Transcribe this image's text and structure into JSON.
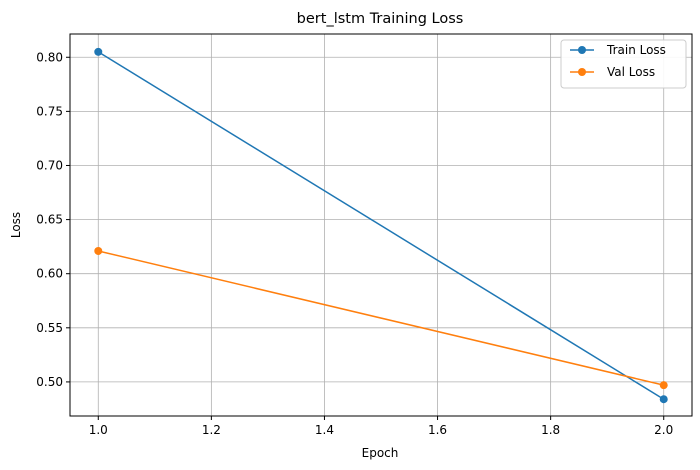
{
  "chart_data": {
    "type": "line",
    "title": "bert_lstm Training Loss",
    "xlabel": "Epoch",
    "ylabel": "Loss",
    "x": [
      1.0,
      2.0
    ],
    "xlim": [
      0.95,
      2.05
    ],
    "ylim": [
      0.4685,
      0.8215
    ],
    "xticks": [
      1.0,
      1.2,
      1.4,
      1.6,
      1.8,
      2.0
    ],
    "xtick_labels": [
      "1.0",
      "1.2",
      "1.4",
      "1.6",
      "1.8",
      "2.0"
    ],
    "yticks": [
      0.5,
      0.55,
      0.6,
      0.65,
      0.7,
      0.75,
      0.8
    ],
    "ytick_labels": [
      "0.50",
      "0.55",
      "0.60",
      "0.65",
      "0.70",
      "0.75",
      "0.80"
    ],
    "grid": true,
    "legend_position": "top-right",
    "series": [
      {
        "name": "Train Loss",
        "color": "#1f77b4",
        "marker": "circle",
        "values": [
          0.805,
          0.484
        ]
      },
      {
        "name": "Val Loss",
        "color": "#ff7f0e",
        "marker": "circle",
        "values": [
          0.621,
          0.497
        ]
      }
    ]
  }
}
